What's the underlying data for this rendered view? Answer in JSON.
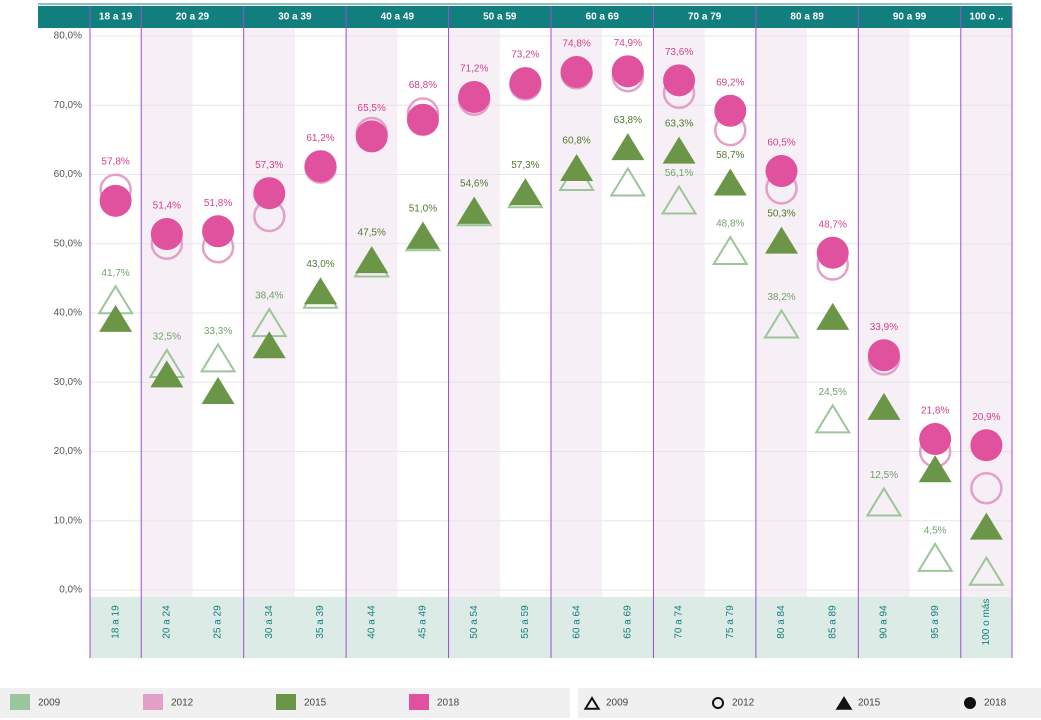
{
  "chart_data": {
    "type": "dot",
    "groups": [
      "18 a 19",
      "20 a 29",
      "30 a 39",
      "40 a 49",
      "50 a 59",
      "60 a 69",
      "70 a 79",
      "80 a 89",
      "90 a 99",
      "100 o .."
    ],
    "categories": [
      "18 a 19",
      "20 a 24",
      "25 a 29",
      "30 a 34",
      "35 a 39",
      "40 a 44",
      "45 a 49",
      "50 a 54",
      "55 a 59",
      "60 a 64",
      "65 a 69",
      "70 a 74",
      "75 a 79",
      "80 a 84",
      "85 a 89",
      "90 a 94",
      "95 a 99",
      "100 o más"
    ],
    "ylim": [
      0,
      80
    ],
    "yticks": [
      {
        "value": 0,
        "label": "0,0%"
      },
      {
        "value": 10,
        "label": "10,0%"
      },
      {
        "value": 20,
        "label": "20,0%"
      },
      {
        "value": 30,
        "label": "30,0%"
      },
      {
        "value": 40,
        "label": "40,0%"
      },
      {
        "value": 50,
        "label": "50,0%"
      },
      {
        "value": 60,
        "label": "60,0%"
      },
      {
        "value": 70,
        "label": "70,0%"
      },
      {
        "value": 80,
        "label": "80,0%"
      }
    ],
    "grid": true,
    "series": [
      {
        "name": "2009",
        "color": "#9cc59a",
        "marker": "triangle-open",
        "values": [
          41.7,
          32.5,
          33.3,
          38.4,
          42.5,
          47.0,
          50.8,
          54.4,
          57.0,
          59.5,
          58.7,
          56.1,
          48.8,
          38.2,
          24.5,
          12.5,
          4.5,
          2.5
        ],
        "value_labels": [
          "41,7%",
          "32,5%",
          "33,3%",
          "38,4%",
          null,
          null,
          null,
          null,
          null,
          null,
          null,
          "56,1%",
          "48,8%",
          "38,2%",
          "24,5%",
          "12,5%",
          "4,5%",
          null
        ]
      },
      {
        "name": "2012",
        "color": "#e3a0c8",
        "marker": "circle-open",
        "values": [
          57.8,
          50.0,
          49.5,
          54.0,
          61.0,
          66.0,
          68.8,
          70.8,
          73.0,
          74.6,
          74.2,
          71.8,
          66.4,
          58.0,
          47.0,
          33.3,
          20.0,
          14.7
        ],
        "value_labels": [
          "57,8%",
          null,
          null,
          null,
          null,
          null,
          "68,8%",
          null,
          null,
          null,
          null,
          null,
          null,
          null,
          null,
          null,
          null,
          null
        ]
      },
      {
        "name": "2015",
        "color": "#6b9648",
        "marker": "triangle",
        "values": [
          39.0,
          31.0,
          28.6,
          35.2,
          43.0,
          47.5,
          51.0,
          54.6,
          57.3,
          60.8,
          63.8,
          63.3,
          58.7,
          50.3,
          39.3,
          26.3,
          17.3,
          9.0
        ],
        "value_labels": [
          null,
          null,
          null,
          null,
          "43,0%",
          "47,5%",
          "51,0%",
          "54,6%",
          "57,3%",
          "60,8%",
          "63,8%",
          "63,3%",
          "58,7%",
          "50,3%",
          null,
          null,
          null,
          null
        ]
      },
      {
        "name": "2018",
        "color": "#e0529e",
        "marker": "circle",
        "values": [
          56.2,
          51.4,
          51.8,
          57.3,
          61.2,
          65.5,
          67.9,
          71.2,
          73.2,
          74.8,
          74.9,
          73.6,
          69.2,
          60.5,
          48.7,
          33.9,
          21.8,
          20.9
        ],
        "value_labels": [
          null,
          "51,4%",
          "51,8%",
          "57,3%",
          "61,2%",
          "65,5%",
          null,
          "71,2%",
          "73,2%",
          "74,8%",
          "74,9%",
          "73,6%",
          "69,2%",
          "60,5%",
          "48,7%",
          "33,9%",
          "21,8%",
          "20,9%"
        ]
      }
    ]
  }
}
